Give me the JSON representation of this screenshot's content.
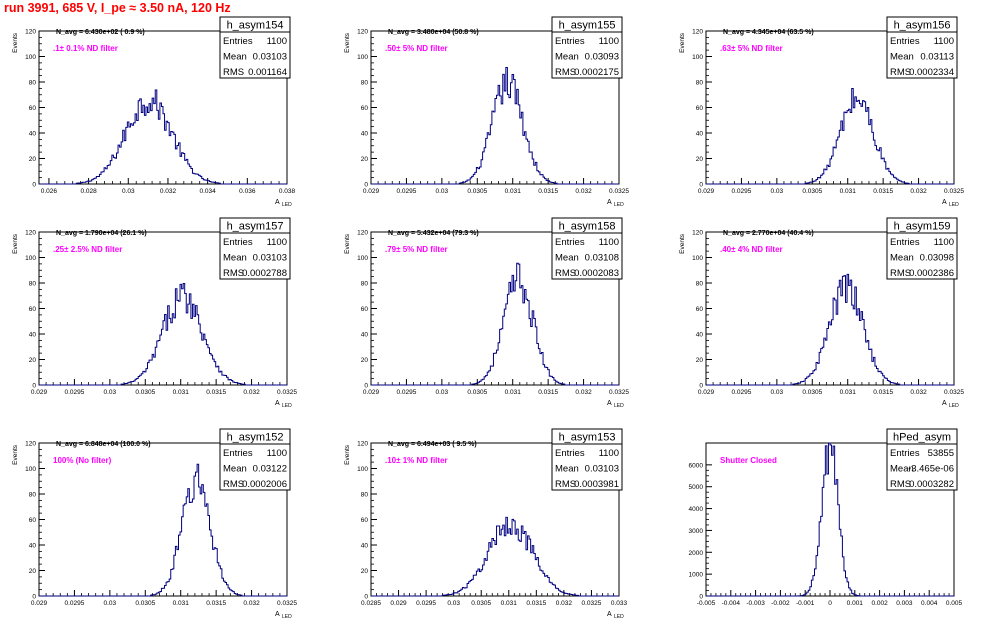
{
  "page": {
    "title": "run 3991,   685 V, I_pe ≈ 3.50 nA, 120 Hz"
  },
  "chart_data": [
    {
      "type": "histogram",
      "title": "h_asym154",
      "ylabel": "Events",
      "xlabel": "A",
      "xlabel_sub": "LED",
      "xlim": [
        0.0255,
        0.038
      ],
      "ylim": [
        0,
        120
      ],
      "xticks": [
        "0.026",
        "0.028",
        "0.03",
        "0.032",
        "0.034",
        "0.036",
        "0.038"
      ],
      "yticks": [
        "0",
        "20",
        "40",
        "60",
        "80",
        "100",
        "120"
      ],
      "stats": {
        "Entries": "1100",
        "Mean": "0.03103",
        "RMS": "0.001164"
      },
      "annotation": "N_avg = 6.430e+02 ( 0.9 %)",
      "filter_label": ".1± 0.1% ND filter",
      "hist": {
        "mean": 0.03103,
        "sigma": 0.001164,
        "peak": 66
      }
    },
    {
      "type": "histogram",
      "title": "h_asym155",
      "ylabel": "Events",
      "xlabel": "A",
      "xlabel_sub": "LED",
      "xlim": [
        0.029,
        0.0325
      ],
      "ylim": [
        0,
        120
      ],
      "xticks": [
        "0.029",
        "0.0295",
        "0.03",
        "0.0305",
        "0.031",
        "0.0315",
        "0.032",
        "0.0325"
      ],
      "yticks": [
        "0",
        "20",
        "40",
        "60",
        "80",
        "100",
        "120"
      ],
      "stats": {
        "Entries": "1100",
        "Mean": "0.03093",
        "RMS": "0.0002175"
      },
      "annotation": "N_avg = 3.480e+04 (50.8 %)",
      "filter_label": ".50± 5% ND filter",
      "hist": {
        "mean": 0.03093,
        "sigma": 0.0002175,
        "peak": 79
      }
    },
    {
      "type": "histogram",
      "title": "h_asym156",
      "ylabel": "Events",
      "xlabel": "A",
      "xlabel_sub": "LED",
      "xlim": [
        0.029,
        0.0325
      ],
      "ylim": [
        0,
        120
      ],
      "xticks": [
        "0.029",
        "0.0295",
        "0.03",
        "0.0305",
        "0.031",
        "0.0315",
        "0.032",
        "0.0325"
      ],
      "yticks": [
        "0",
        "20",
        "40",
        "60",
        "80",
        "100",
        "120"
      ],
      "stats": {
        "Entries": "1100",
        "Mean": "0.03113",
        "RMS": "0.0002334"
      },
      "annotation": "N_avg = 4.345e+04 (63.5 %)",
      "filter_label": ".63± 5% ND filter",
      "hist": {
        "mean": 0.03113,
        "sigma": 0.0002334,
        "peak": 67
      }
    },
    {
      "type": "histogram",
      "title": "h_asym157",
      "ylabel": "Events",
      "xlabel": "A",
      "xlabel_sub": "LED",
      "xlim": [
        0.029,
        0.0325
      ],
      "ylim": [
        0,
        120
      ],
      "xticks": [
        "0.029",
        "0.0295",
        "0.03",
        "0.0305",
        "0.031",
        "0.0315",
        "0.032",
        "0.0325"
      ],
      "yticks": [
        "0",
        "20",
        "40",
        "60",
        "80",
        "100",
        "120"
      ],
      "stats": {
        "Entries": "1100",
        "Mean": "0.03103",
        "RMS": "0.0002788"
      },
      "annotation": "N_avg = 1.790e+04 (26.1 %)",
      "filter_label": ".25± 2.5% ND filter",
      "hist": {
        "mean": 0.03103,
        "sigma": 0.0002788,
        "peak": 70
      }
    },
    {
      "type": "histogram",
      "title": "h_asym158",
      "ylabel": "Events",
      "xlabel": "A",
      "xlabel_sub": "LED",
      "xlim": [
        0.029,
        0.0325
      ],
      "ylim": [
        0,
        120
      ],
      "xticks": [
        "0.029",
        "0.0295",
        "0.03",
        "0.0305",
        "0.031",
        "0.0315",
        "0.032",
        "0.0325"
      ],
      "yticks": [
        "0",
        "20",
        "40",
        "60",
        "80",
        "100",
        "120"
      ],
      "stats": {
        "Entries": "1100",
        "Mean": "0.03108",
        "RMS": "0.0002083"
      },
      "annotation": "N_avg = 5.432e+04 (79.3 %)",
      "filter_label": ".79± 5% ND filter",
      "hist": {
        "mean": 0.03108,
        "sigma": 0.0002083,
        "peak": 82
      }
    },
    {
      "type": "histogram",
      "title": "h_asym159",
      "ylabel": "Events",
      "xlabel": "A",
      "xlabel_sub": "LED",
      "xlim": [
        0.029,
        0.0325
      ],
      "ylim": [
        0,
        120
      ],
      "xticks": [
        "0.029",
        "0.0295",
        "0.03",
        "0.0305",
        "0.031",
        "0.0315",
        "0.032",
        "0.0325"
      ],
      "yticks": [
        "0",
        "20",
        "40",
        "60",
        "80",
        "100",
        "120"
      ],
      "stats": {
        "Entries": "1100",
        "Mean": "0.03098",
        "RMS": "0.0002386"
      },
      "annotation": "N_avg = 2.770e+04 (40.4 %)",
      "filter_label": ".40± 4% ND filter",
      "hist": {
        "mean": 0.03098,
        "sigma": 0.0002386,
        "peak": 76
      }
    },
    {
      "type": "histogram",
      "title": "h_asym152",
      "ylabel": "Events",
      "xlabel": "A",
      "xlabel_sub": "LED",
      "xlim": [
        0.029,
        0.0325
      ],
      "ylim": [
        0,
        120
      ],
      "xticks": [
        "0.029",
        "0.0295",
        "0.03",
        "0.0305",
        "0.031",
        "0.0315",
        "0.032",
        "0.0325"
      ],
      "yticks": [
        "0",
        "20",
        "40",
        "60",
        "80",
        "100",
        "120"
      ],
      "stats": {
        "Entries": "1100",
        "Mean": "0.03122",
        "RMS": "0.0002006"
      },
      "annotation": "N_avg = 6.848e+04 (100.0 %)",
      "filter_label": "100% (No filter)",
      "hist": {
        "mean": 0.03122,
        "sigma": 0.0002006,
        "peak": 90
      }
    },
    {
      "type": "histogram",
      "title": "h_asym153",
      "ylabel": "Events",
      "xlabel": "A",
      "xlabel_sub": "LED",
      "xlim": [
        0.0285,
        0.033
      ],
      "ylim": [
        0,
        120
      ],
      "xticks": [
        "0.0285",
        "0.029",
        "0.0295",
        "0.03",
        "0.0305",
        "0.031",
        "0.0315",
        "0.032",
        "0.0325",
        "0.033"
      ],
      "yticks": [
        "0",
        "20",
        "40",
        "60",
        "80",
        "100",
        "120"
      ],
      "stats": {
        "Entries": "1100",
        "Mean": "0.03103",
        "RMS": "0.0003981"
      },
      "annotation": "N_avg = 6.494e+03 ( 9.5 %)",
      "filter_label": ".10± 1% ND filter",
      "hist": {
        "mean": 0.03103,
        "sigma": 0.0003981,
        "peak": 57
      }
    },
    {
      "type": "histogram",
      "title": "hPed_asym",
      "ylabel": "",
      "xlabel": "",
      "xlabel_sub": "",
      "xlim": [
        -0.005,
        0.005
      ],
      "ylim": [
        0,
        7000
      ],
      "xticks": [
        "-0.005",
        "-0.004",
        "-0.003",
        "-0.002",
        "-0.001",
        "0",
        "0.001",
        "0.002",
        "0.003",
        "0.004",
        "0.005"
      ],
      "yticks": [
        "0",
        "1000",
        "2000",
        "3000",
        "4000",
        "5000",
        "6000"
      ],
      "stats": {
        "Entries": "53855",
        "Mean": "-3.465e-06",
        "RMS": "0.0003282"
      },
      "annotation": "",
      "filter_label": "Shutter Closed",
      "hist": {
        "mean": -3.465e-06,
        "sigma": 0.0003282,
        "peak": 6700
      }
    }
  ]
}
